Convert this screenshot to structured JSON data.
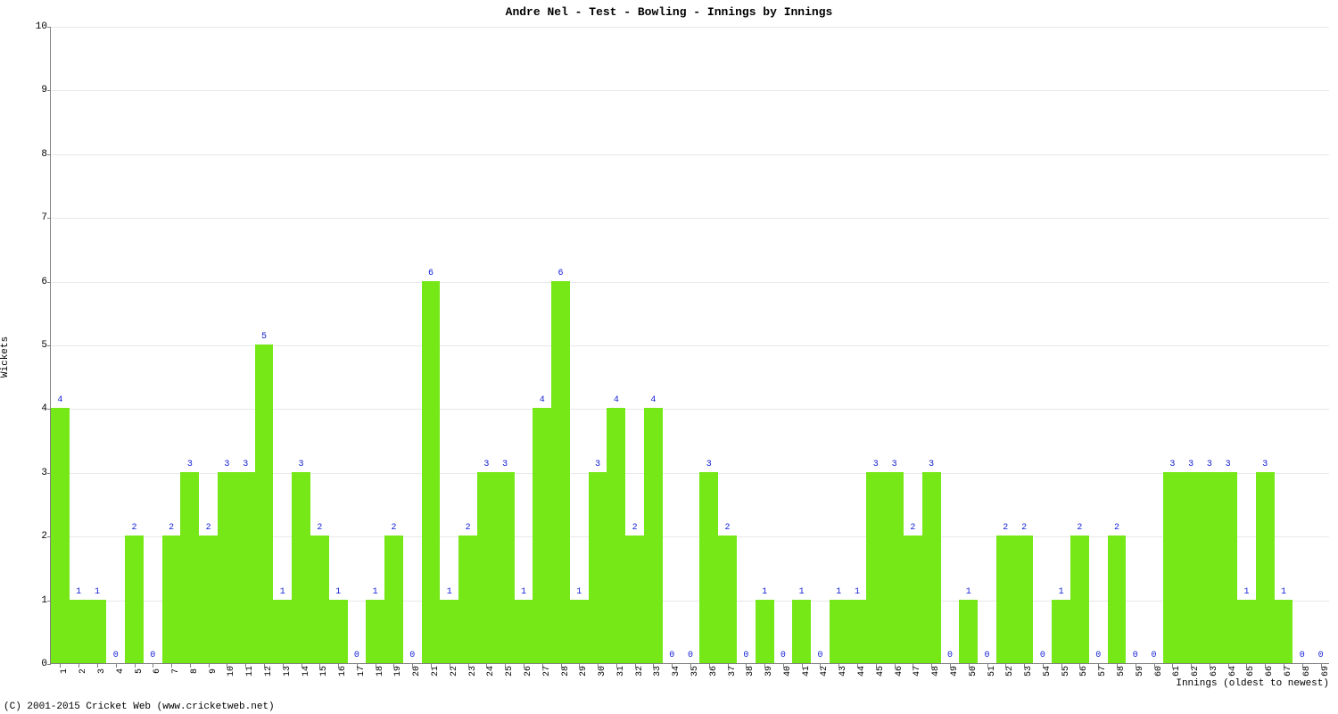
{
  "chart": {
    "type": "bar",
    "title": "Andre Nel - Test - Bowling - Innings by Innings",
    "title_fontsize": 13,
    "xlabel": "Innings (oldest to newest)",
    "ylabel": "Wickets",
    "label_fontsize": 11,
    "categories": [
      "1",
      "2",
      "3",
      "4",
      "5",
      "6",
      "7",
      "8",
      "9",
      "10",
      "11",
      "12",
      "13",
      "14",
      "15",
      "16",
      "17",
      "18",
      "19",
      "20",
      "21",
      "22",
      "23",
      "24",
      "25",
      "26",
      "27",
      "28",
      "29",
      "30",
      "31",
      "32",
      "33",
      "34",
      "35",
      "36",
      "37",
      "38",
      "39",
      "40",
      "41",
      "42",
      "43",
      "44",
      "45",
      "46",
      "47",
      "48",
      "49",
      "50",
      "51",
      "52",
      "53",
      "54",
      "55",
      "56",
      "57",
      "58",
      "59",
      "60",
      "61",
      "62",
      "63",
      "64",
      "65",
      "66",
      "67",
      "68",
      "69"
    ],
    "values": [
      4,
      1,
      1,
      0,
      2,
      0,
      2,
      3,
      2,
      3,
      3,
      5,
      1,
      3,
      2,
      1,
      0,
      1,
      2,
      0,
      6,
      1,
      2,
      3,
      3,
      1,
      4,
      6,
      1,
      3,
      4,
      2,
      4,
      0,
      0,
      3,
      2,
      0,
      1,
      0,
      1,
      0,
      1,
      1,
      3,
      3,
      2,
      3,
      0,
      1,
      0,
      2,
      2,
      0,
      1,
      2,
      0,
      2,
      0,
      0,
      3,
      3,
      3,
      3,
      1,
      3,
      1,
      0,
      0
    ],
    "bar_color": "#76e817",
    "value_label_color": "#1320d6",
    "ylim": [
      0,
      10
    ],
    "ytick_step": 1,
    "background_color": "#ffffff",
    "grid_color": "#e8e8e8",
    "axis_color": "#808080",
    "bar_width_ratio": 1.0,
    "tick_fontsize": 10
  },
  "copyright": "(C) 2001-2015 Cricket Web (www.cricketweb.net)"
}
